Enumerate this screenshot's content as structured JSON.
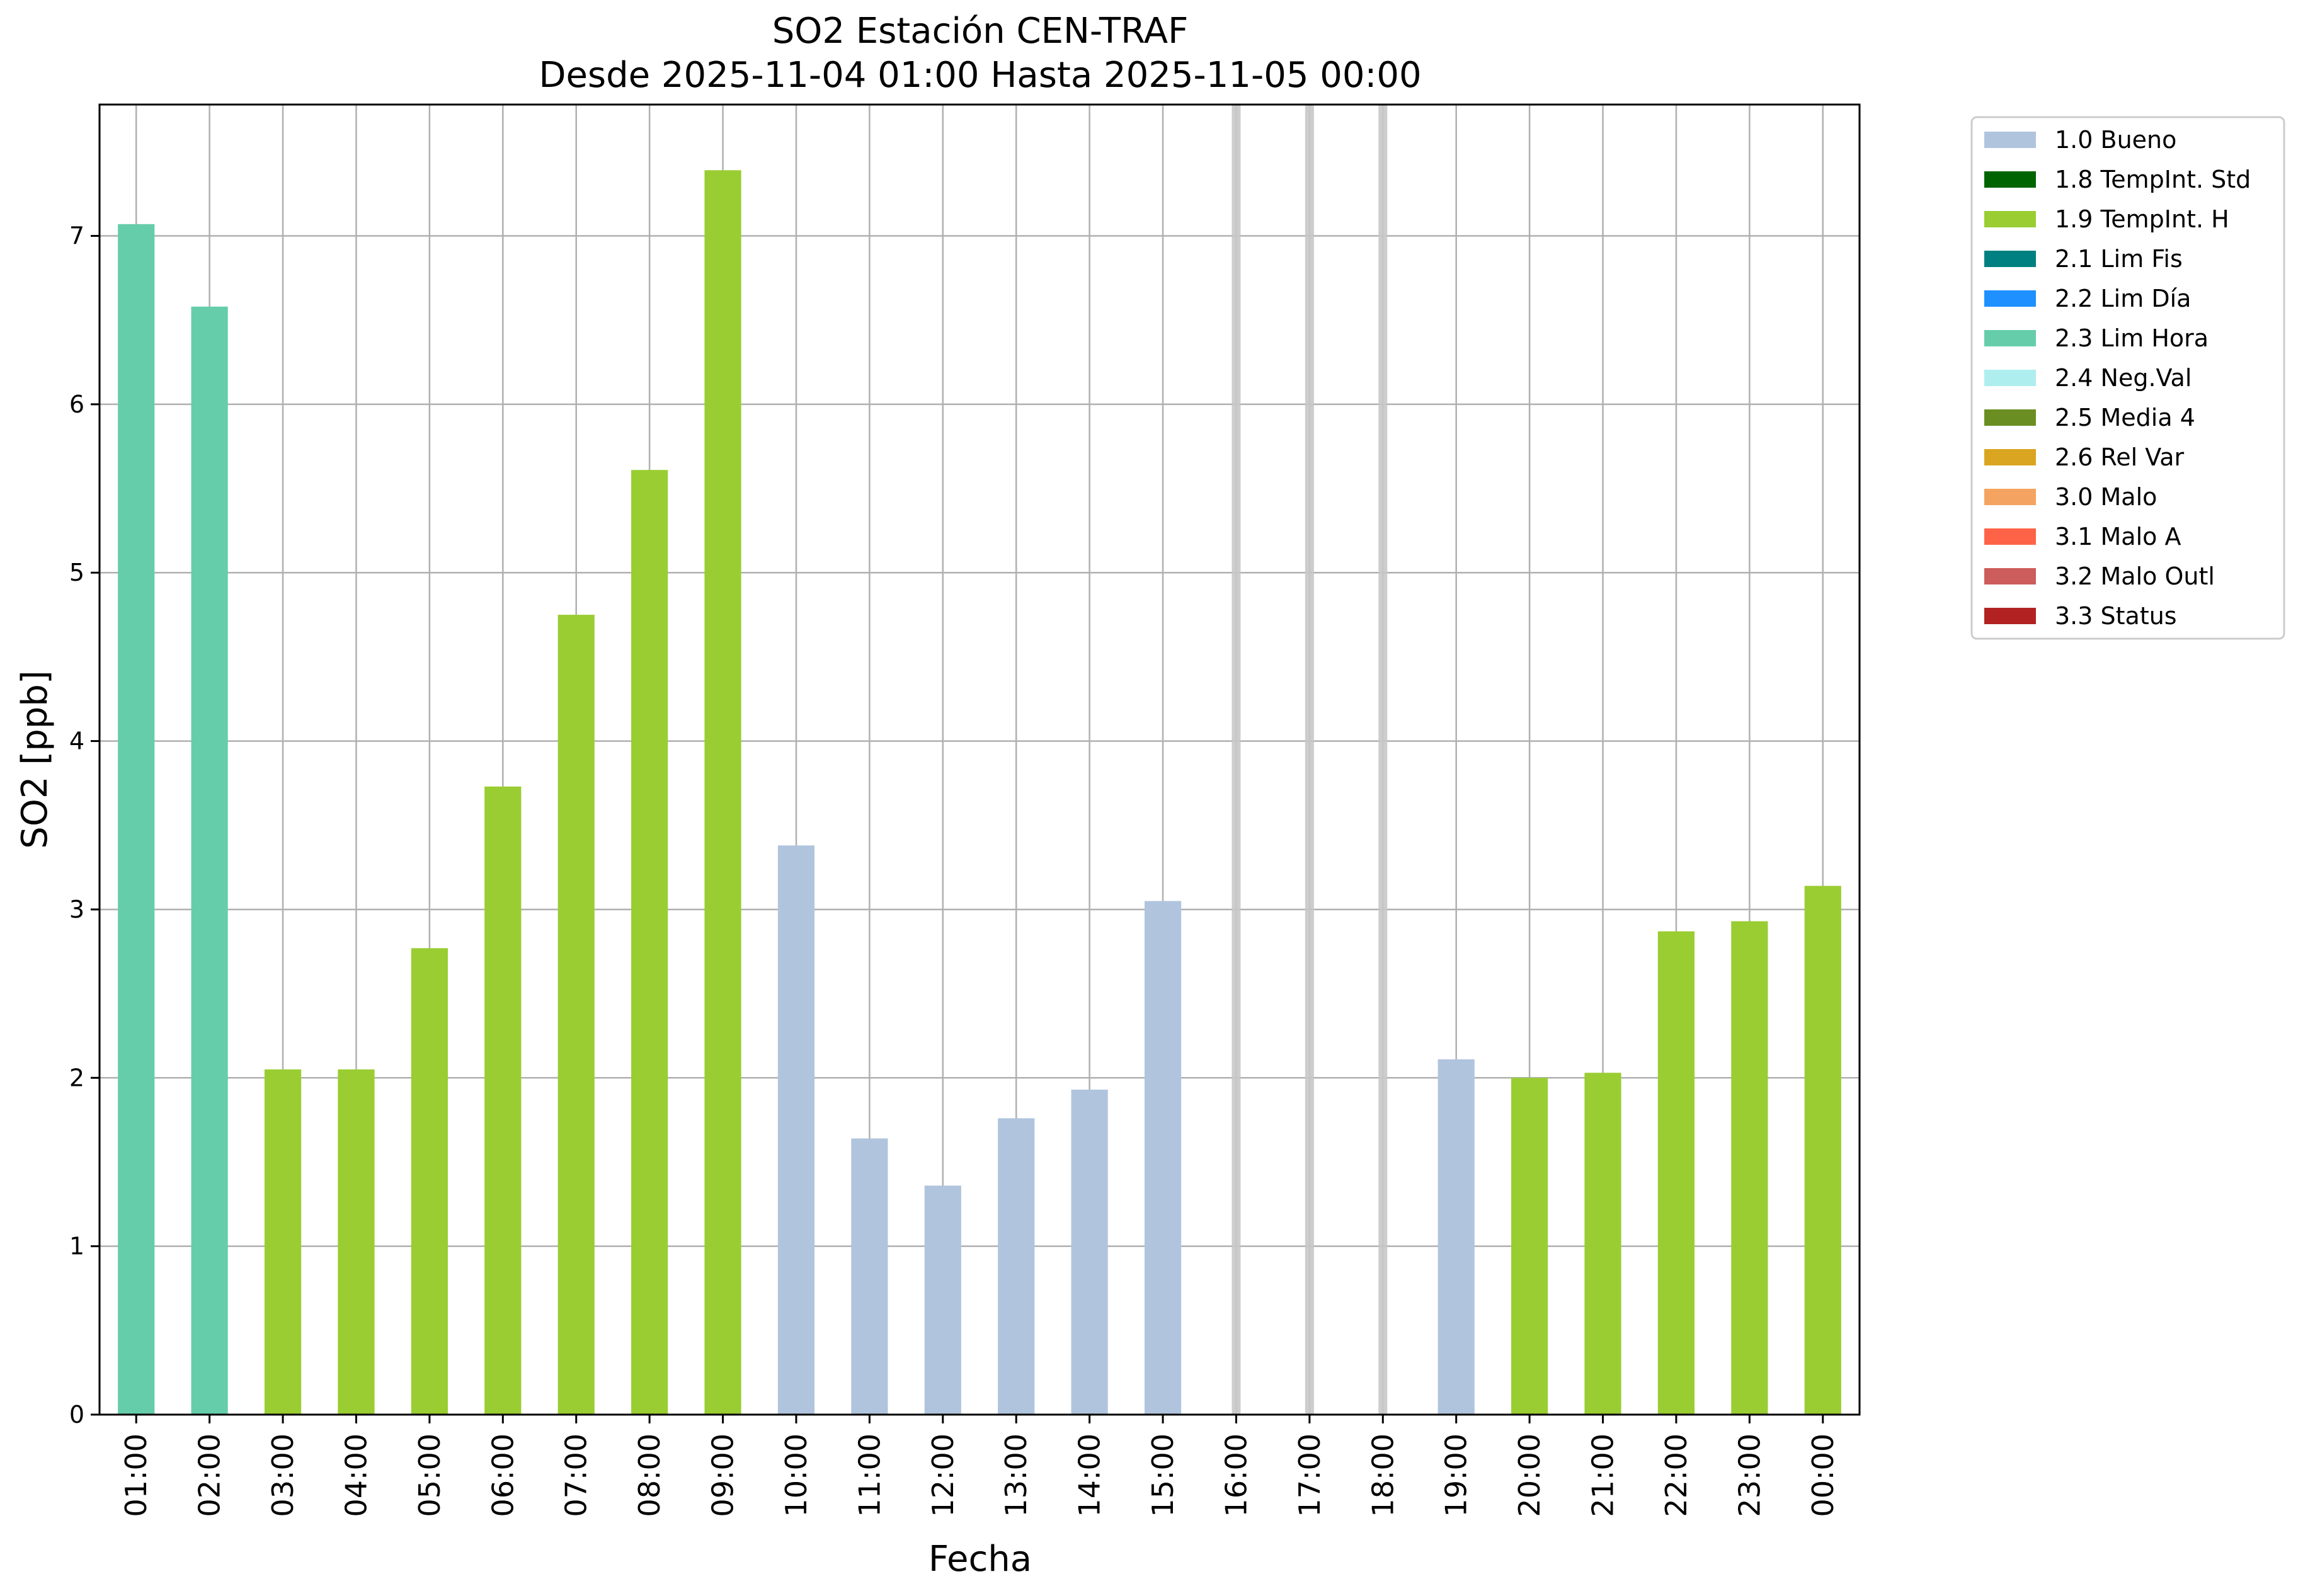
{
  "chart_data": {
    "type": "bar",
    "title": "SO2 Estación CEN-TRAF",
    "subtitle": "Desde 2025-11-04 01:00 Hasta 2025-11-05 00:00",
    "xlabel": "Fecha",
    "ylabel": "SO2 [ppb]",
    "ylim": [
      0,
      7.78
    ],
    "yticks": [
      0,
      1,
      2,
      3,
      4,
      5,
      6,
      7
    ],
    "grid": true,
    "legend_position": "outside-right-top",
    "categories": [
      "01:00",
      "02:00",
      "03:00",
      "04:00",
      "05:00",
      "06:00",
      "07:00",
      "08:00",
      "09:00",
      "10:00",
      "11:00",
      "12:00",
      "13:00",
      "14:00",
      "15:00",
      "16:00",
      "17:00",
      "18:00",
      "19:00",
      "20:00",
      "21:00",
      "22:00",
      "23:00",
      "00:00"
    ],
    "values": [
      7.07,
      6.58,
      2.05,
      2.05,
      2.77,
      3.73,
      4.75,
      5.61,
      7.39,
      3.38,
      1.64,
      1.36,
      1.76,
      1.93,
      3.05,
      null,
      null,
      null,
      2.11,
      2.0,
      2.03,
      2.87,
      2.93,
      3.14
    ],
    "flags": [
      "2.3 Lim Hora",
      "2.3 Lim Hora",
      "1.9 TempInt. H",
      "1.9 TempInt. H",
      "1.9 TempInt. H",
      "1.9 TempInt. H",
      "1.9 TempInt. H",
      "1.9 TempInt. H",
      "1.9 TempInt. H",
      "1.0 Bueno",
      "1.0 Bueno",
      "1.0 Bueno",
      "1.0 Bueno",
      "1.0 Bueno",
      "1.0 Bueno",
      null,
      null,
      null,
      "1.0 Bueno",
      "1.9 TempInt. H",
      "1.9 TempInt. H",
      "1.9 TempInt. H",
      "1.9 TempInt. H",
      "1.9 TempInt. H"
    ],
    "missing_color": "#c8c8c8",
    "legend": [
      {
        "label": "1.0 Bueno",
        "color": "#b0c4de"
      },
      {
        "label": "1.8 TempInt. Std",
        "color": "#006400"
      },
      {
        "label": "1.9 TempInt. H",
        "color": "#9acd32"
      },
      {
        "label": "2.1 Lim Fis",
        "color": "#008080"
      },
      {
        "label": "2.2 Lim Día",
        "color": "#1e90ff"
      },
      {
        "label": "2.3 Lim Hora",
        "color": "#66cdaa"
      },
      {
        "label": "2.4 Neg.Val",
        "color": "#afeeee"
      },
      {
        "label": "2.5 Media 4",
        "color": "#6b8e23"
      },
      {
        "label": "2.6 Rel Var",
        "color": "#daa520"
      },
      {
        "label": "3.0 Malo",
        "color": "#f4a460"
      },
      {
        "label": "3.1 Malo A",
        "color": "#ff6347"
      },
      {
        "label": "3.2 Malo Outl",
        "color": "#cd5c5c"
      },
      {
        "label": "3.3 Status",
        "color": "#b22222"
      }
    ]
  }
}
